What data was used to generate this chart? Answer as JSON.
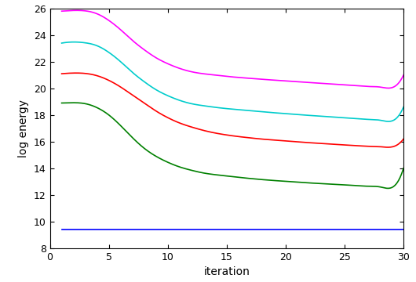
{
  "title": "",
  "xlabel": "iteration",
  "ylabel": "log energy",
  "xlim": [
    0,
    30
  ],
  "ylim": [
    8,
    26
  ],
  "xticks": [
    0,
    5,
    10,
    15,
    20,
    25,
    30
  ],
  "yticks": [
    8,
    10,
    12,
    14,
    16,
    18,
    20,
    22,
    24,
    26
  ],
  "lines": [
    {
      "color": "#FF00FF",
      "y_vals": [
        25.8,
        25.85,
        25.82,
        25.6,
        25.1,
        24.4,
        23.6,
        22.9,
        22.3,
        21.85,
        21.5,
        21.25,
        21.1,
        21.0,
        20.9,
        20.82,
        20.75,
        20.68,
        20.62,
        20.56,
        20.5,
        20.44,
        20.38,
        20.32,
        20.26,
        20.2,
        20.14,
        20.1,
        20.05,
        21.0
      ]
    },
    {
      "color": "#00CCCC",
      "y_vals": [
        23.4,
        23.48,
        23.42,
        23.2,
        22.7,
        22.0,
        21.2,
        20.5,
        19.9,
        19.45,
        19.1,
        18.85,
        18.7,
        18.58,
        18.48,
        18.4,
        18.32,
        18.24,
        18.17,
        18.1,
        18.03,
        17.97,
        17.91,
        17.85,
        17.79,
        17.73,
        17.67,
        17.61,
        17.55,
        18.6
      ]
    },
    {
      "color": "#FF0000",
      "y_vals": [
        21.1,
        21.15,
        21.12,
        20.95,
        20.6,
        20.1,
        19.5,
        18.9,
        18.3,
        17.8,
        17.4,
        17.1,
        16.85,
        16.65,
        16.5,
        16.38,
        16.28,
        16.19,
        16.12,
        16.05,
        15.98,
        15.92,
        15.86,
        15.8,
        15.75,
        15.7,
        15.65,
        15.62,
        15.6,
        16.2
      ]
    },
    {
      "color": "#008000",
      "y_vals": [
        18.9,
        18.92,
        18.85,
        18.55,
        18.0,
        17.2,
        16.3,
        15.5,
        14.9,
        14.45,
        14.1,
        13.85,
        13.65,
        13.52,
        13.42,
        13.32,
        13.23,
        13.15,
        13.08,
        13.02,
        12.96,
        12.9,
        12.85,
        12.8,
        12.75,
        12.7,
        12.65,
        12.6,
        12.55,
        14.0
      ]
    },
    {
      "color": "#0000FF",
      "y_vals": [
        9.4,
        9.4,
        9.4,
        9.4,
        9.4,
        9.4,
        9.4,
        9.4,
        9.4,
        9.4,
        9.4,
        9.4,
        9.4,
        9.4,
        9.4,
        9.4,
        9.4,
        9.4,
        9.4,
        9.4,
        9.4,
        9.4,
        9.4,
        9.4,
        9.4,
        9.4,
        9.4,
        9.4,
        9.4,
        9.4
      ]
    }
  ],
  "figsize": [
    5.3,
    3.6
  ],
  "dpi": 100,
  "background_color": "#ffffff",
  "linewidth": 1.2
}
